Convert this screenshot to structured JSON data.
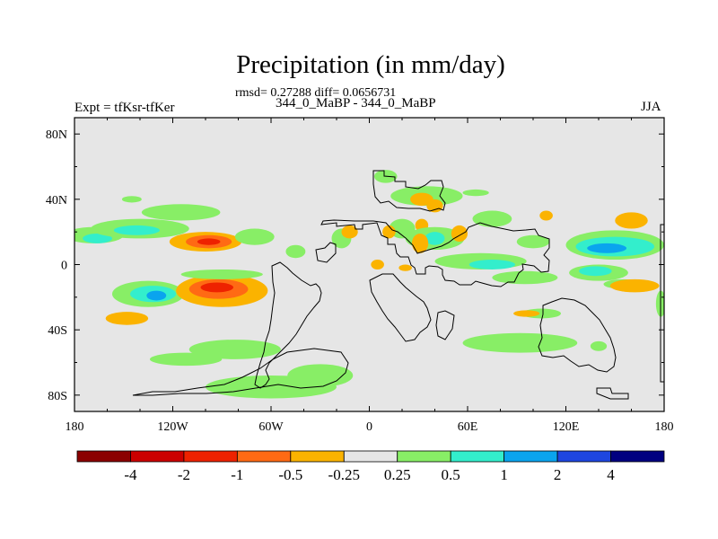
{
  "chart_data": {
    "type": "heatmap",
    "title": "Precipitation (in mm/day)",
    "stats_text": "rmsd= 0.27288 diff= 0.0656731",
    "subtitle": "344_0_MaBP - 344_0_MaBP",
    "left_label": "Expt = tfKsr-tfKer",
    "right_label": "JJA",
    "x_range": [
      -180,
      180
    ],
    "y_range": [
      -90,
      90
    ],
    "x_ticks": [
      {
        "value": -180,
        "label": "180"
      },
      {
        "value": -120,
        "label": "120W"
      },
      {
        "value": -60,
        "label": "60W"
      },
      {
        "value": 0,
        "label": "0"
      },
      {
        "value": 60,
        "label": "60E"
      },
      {
        "value": 120,
        "label": "120E"
      },
      {
        "value": 180,
        "label": "180"
      }
    ],
    "y_ticks": [
      {
        "value": 80,
        "label": "80N"
      },
      {
        "value": 40,
        "label": "40N"
      },
      {
        "value": 0,
        "label": "0"
      },
      {
        "value": -40,
        "label": "40S"
      },
      {
        "value": -80,
        "label": "80S"
      }
    ],
    "colorbar": {
      "labels": [
        "-4",
        "-2",
        "-1",
        "-0.5",
        "-0.25",
        "0.25",
        "0.5",
        "1",
        "2",
        "4"
      ],
      "colors": [
        "#8b0000",
        "#cc0000",
        "#ee2200",
        "#ff6a14",
        "#fbb300",
        "#e6e6e6",
        "#88ee66",
        "#33eecc",
        "#0aa4ee",
        "#1e46e0",
        "#000080"
      ]
    },
    "background_color": "#e6e6e6",
    "regions": [
      {
        "level": 6,
        "lon": -168,
        "lat": 18,
        "rx": 18,
        "ry": 5
      },
      {
        "level": 7,
        "lon": -166,
        "lat": 16,
        "rx": 9,
        "ry": 3
      },
      {
        "level": 6,
        "lon": -140,
        "lat": 22,
        "rx": 30,
        "ry": 6
      },
      {
        "level": 7,
        "lon": -142,
        "lat": 21,
        "rx": 14,
        "ry": 3
      },
      {
        "level": 4,
        "lon": -100,
        "lat": 14,
        "rx": 22,
        "ry": 6
      },
      {
        "level": 3,
        "lon": -98,
        "lat": 14,
        "rx": 14,
        "ry": 4
      },
      {
        "level": 2,
        "lon": -98,
        "lat": 14,
        "rx": 7,
        "ry": 2
      },
      {
        "level": 6,
        "lon": -115,
        "lat": 32,
        "rx": 24,
        "ry": 5
      },
      {
        "level": 6,
        "lon": -145,
        "lat": 40,
        "rx": 6,
        "ry": 2
      },
      {
        "level": 6,
        "lon": -70,
        "lat": 17,
        "rx": 12,
        "ry": 5
      },
      {
        "level": 6,
        "lon": -135,
        "lat": -18,
        "rx": 22,
        "ry": 8
      },
      {
        "level": 7,
        "lon": -132,
        "lat": -18,
        "rx": 14,
        "ry": 5
      },
      {
        "level": 8,
        "lon": -130,
        "lat": -19,
        "rx": 6,
        "ry": 3
      },
      {
        "level": 4,
        "lon": -90,
        "lat": -16,
        "rx": 28,
        "ry": 10
      },
      {
        "level": 3,
        "lon": -92,
        "lat": -15,
        "rx": 18,
        "ry": 6
      },
      {
        "level": 2,
        "lon": -93,
        "lat": -14,
        "rx": 10,
        "ry": 3
      },
      {
        "level": 6,
        "lon": -90,
        "lat": -6,
        "rx": 25,
        "ry": 3
      },
      {
        "level": 4,
        "lon": -148,
        "lat": -33,
        "rx": 13,
        "ry": 4
      },
      {
        "level": 6,
        "lon": -82,
        "lat": -52,
        "rx": 28,
        "ry": 6
      },
      {
        "level": 6,
        "lon": -112,
        "lat": -58,
        "rx": 22,
        "ry": 4
      },
      {
        "level": 6,
        "lon": -60,
        "lat": -75,
        "rx": 40,
        "ry": 7
      },
      {
        "level": 6,
        "lon": -30,
        "lat": -68,
        "rx": 20,
        "ry": 7
      },
      {
        "level": 6,
        "lon": -45,
        "lat": 8,
        "rx": 6,
        "ry": 4
      },
      {
        "level": 6,
        "lon": -17,
        "lat": 16,
        "rx": 6,
        "ry": 6
      },
      {
        "level": 4,
        "lon": -12,
        "lat": 20,
        "rx": 5,
        "ry": 4
      },
      {
        "level": 6,
        "lon": 10,
        "lat": 54,
        "rx": 7,
        "ry": 4
      },
      {
        "level": 6,
        "lon": 35,
        "lat": 42,
        "rx": 22,
        "ry": 6
      },
      {
        "level": 4,
        "lon": 32,
        "lat": 40,
        "rx": 7,
        "ry": 4
      },
      {
        "level": 4,
        "lon": 40,
        "lat": 36,
        "rx": 5,
        "ry": 4
      },
      {
        "level": 6,
        "lon": 65,
        "lat": 44,
        "rx": 8,
        "ry": 2
      },
      {
        "level": 6,
        "lon": 20,
        "lat": 22,
        "rx": 8,
        "ry": 6
      },
      {
        "level": 4,
        "lon": 12,
        "lat": 20,
        "rx": 4,
        "ry": 4
      },
      {
        "level": 4,
        "lon": 32,
        "lat": 24,
        "rx": 4,
        "ry": 4
      },
      {
        "level": 6,
        "lon": 40,
        "lat": 16,
        "rx": 18,
        "ry": 7
      },
      {
        "level": 7,
        "lon": 40,
        "lat": 16,
        "rx": 6,
        "ry": 4
      },
      {
        "level": 4,
        "lon": 31,
        "lat": 13,
        "rx": 5,
        "ry": 6
      },
      {
        "level": 4,
        "lon": 55,
        "lat": 19,
        "rx": 5,
        "ry": 5
      },
      {
        "level": 6,
        "lon": 75,
        "lat": 28,
        "rx": 12,
        "ry": 5
      },
      {
        "level": 6,
        "lon": 100,
        "lat": 14,
        "rx": 10,
        "ry": 4
      },
      {
        "level": 6,
        "lon": 68,
        "lat": 2,
        "rx": 28,
        "ry": 5
      },
      {
        "level": 7,
        "lon": 75,
        "lat": 0,
        "rx": 14,
        "ry": 3
      },
      {
        "level": 6,
        "lon": 95,
        "lat": -8,
        "rx": 20,
        "ry": 4
      },
      {
        "level": 4,
        "lon": 5,
        "lat": 0,
        "rx": 4,
        "ry": 3
      },
      {
        "level": 4,
        "lon": 22,
        "lat": -2,
        "rx": 4,
        "ry": 2
      },
      {
        "level": 6,
        "lon": 150,
        "lat": 12,
        "rx": 30,
        "ry": 9
      },
      {
        "level": 7,
        "lon": 150,
        "lat": 11,
        "rx": 24,
        "ry": 6
      },
      {
        "level": 8,
        "lon": 145,
        "lat": 10,
        "rx": 12,
        "ry": 3
      },
      {
        "level": 6,
        "lon": 140,
        "lat": -5,
        "rx": 18,
        "ry": 5
      },
      {
        "level": 7,
        "lon": 138,
        "lat": -4,
        "rx": 10,
        "ry": 3
      },
      {
        "level": 4,
        "lon": 160,
        "lat": 27,
        "rx": 10,
        "ry": 5
      },
      {
        "level": 4,
        "lon": 108,
        "lat": 30,
        "rx": 4,
        "ry": 3
      },
      {
        "level": 6,
        "lon": 155,
        "lat": -12,
        "rx": 12,
        "ry": 3
      },
      {
        "level": 4,
        "lon": 162,
        "lat": -13,
        "rx": 15,
        "ry": 4
      },
      {
        "level": 6,
        "lon": 178,
        "lat": -24,
        "rx": 3,
        "ry": 8
      },
      {
        "level": 6,
        "lon": 105,
        "lat": -30,
        "rx": 12,
        "ry": 3
      },
      {
        "level": 4,
        "lon": 96,
        "lat": -30,
        "rx": 8,
        "ry": 2
      },
      {
        "level": 6,
        "lon": 92,
        "lat": -48,
        "rx": 35,
        "ry": 6
      },
      {
        "level": 6,
        "lon": 140,
        "lat": -50,
        "rx": 5,
        "ry": 3
      }
    ]
  }
}
